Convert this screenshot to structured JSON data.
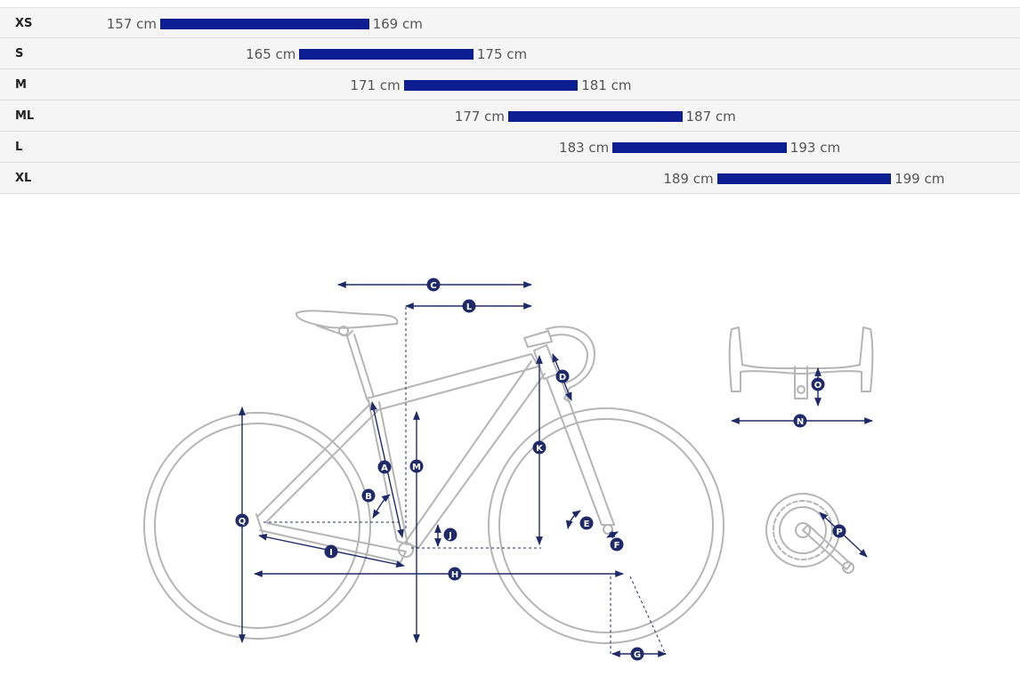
{
  "colors": {
    "bar": "#0d1d92",
    "marker": "#1f2a6b",
    "line": "#b5b5b5",
    "row_bg": "#f5f5f5"
  },
  "size_chart": {
    "rows": [
      {
        "size": "XS",
        "min": 157,
        "max": 169,
        "min_label": "157 cm",
        "max_label": "169 cm"
      },
      {
        "size": "S",
        "min": 165,
        "max": 175,
        "min_label": "165 cm",
        "max_label": "175 cm"
      },
      {
        "size": "M",
        "min": 171,
        "max": 181,
        "min_label": "171 cm",
        "max_label": "181 cm"
      },
      {
        "size": "ML",
        "min": 177,
        "max": 187,
        "min_label": "177 cm",
        "max_label": "187 cm"
      },
      {
        "size": "L",
        "min": 183,
        "max": 193,
        "min_label": "183 cm",
        "max_label": "193 cm"
      },
      {
        "size": "XL",
        "min": 189,
        "max": 199,
        "min_label": "189 cm",
        "max_label": "199 cm"
      }
    ]
  },
  "geometry_labels": [
    "A",
    "B",
    "C",
    "D",
    "E",
    "F",
    "G",
    "H",
    "I",
    "J",
    "K",
    "L",
    "M",
    "N",
    "O",
    "P",
    "Q"
  ]
}
